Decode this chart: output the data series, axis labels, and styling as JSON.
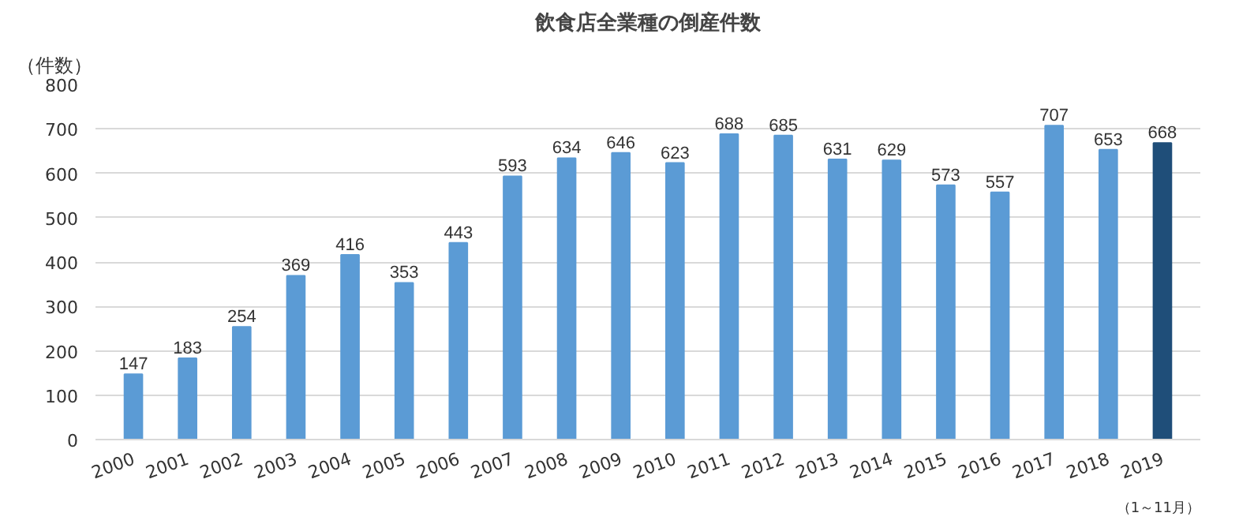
{
  "chart_data": {
    "type": "bar",
    "title": "飲食店全業種の倒産件数",
    "ylabel": "（件数）",
    "categories": [
      "2000",
      "2001",
      "2002",
      "2003",
      "2004",
      "2005",
      "2006",
      "2007",
      "2008",
      "2009",
      "2010",
      "2011",
      "2012",
      "2013",
      "2014",
      "2015",
      "2016",
      "2017",
      "2018",
      "2019"
    ],
    "values": [
      147,
      183,
      254,
      369,
      416,
      353,
      443,
      593,
      634,
      646,
      623,
      688,
      685,
      631,
      629,
      573,
      557,
      707,
      653,
      668
    ],
    "colors": [
      "#5b9bd5",
      "#5b9bd5",
      "#5b9bd5",
      "#5b9bd5",
      "#5b9bd5",
      "#5b9bd5",
      "#5b9bd5",
      "#5b9bd5",
      "#5b9bd5",
      "#5b9bd5",
      "#5b9bd5",
      "#5b9bd5",
      "#5b9bd5",
      "#5b9bd5",
      "#5b9bd5",
      "#5b9bd5",
      "#5b9bd5",
      "#5b9bd5",
      "#5b9bd5",
      "#1f4e79"
    ],
    "ylim": [
      0,
      800
    ],
    "yticks": [
      0,
      100,
      200,
      300,
      400,
      500,
      600,
      700,
      800
    ],
    "grid": "y",
    "data_labels": true,
    "annotations": [
      "（1～11月）"
    ]
  }
}
